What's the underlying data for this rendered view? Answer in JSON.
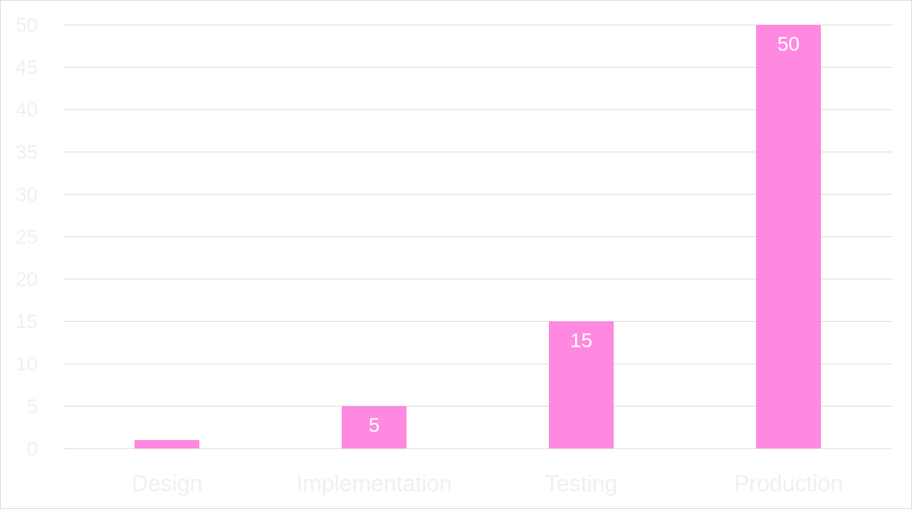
{
  "chart_data": {
    "type": "bar",
    "categories": [
      "Design",
      "Implementation",
      "Testing",
      "Production"
    ],
    "values": [
      1,
      5,
      15,
      50
    ],
    "data_labels": [
      "",
      "5",
      "15",
      "50"
    ],
    "title": "",
    "xlabel": "",
    "ylabel": "",
    "ylim": [
      0,
      50
    ],
    "yticks": [
      0,
      5,
      10,
      15,
      20,
      25,
      30,
      35,
      40,
      45,
      50
    ],
    "grid": true,
    "legend": "none",
    "colors": {
      "bar": "#ff88e0",
      "grid": "#d9d9d9",
      "tick_text": "#f0f0f0",
      "data_label_text": "#ffffff",
      "border": "#d9d9d9"
    }
  }
}
